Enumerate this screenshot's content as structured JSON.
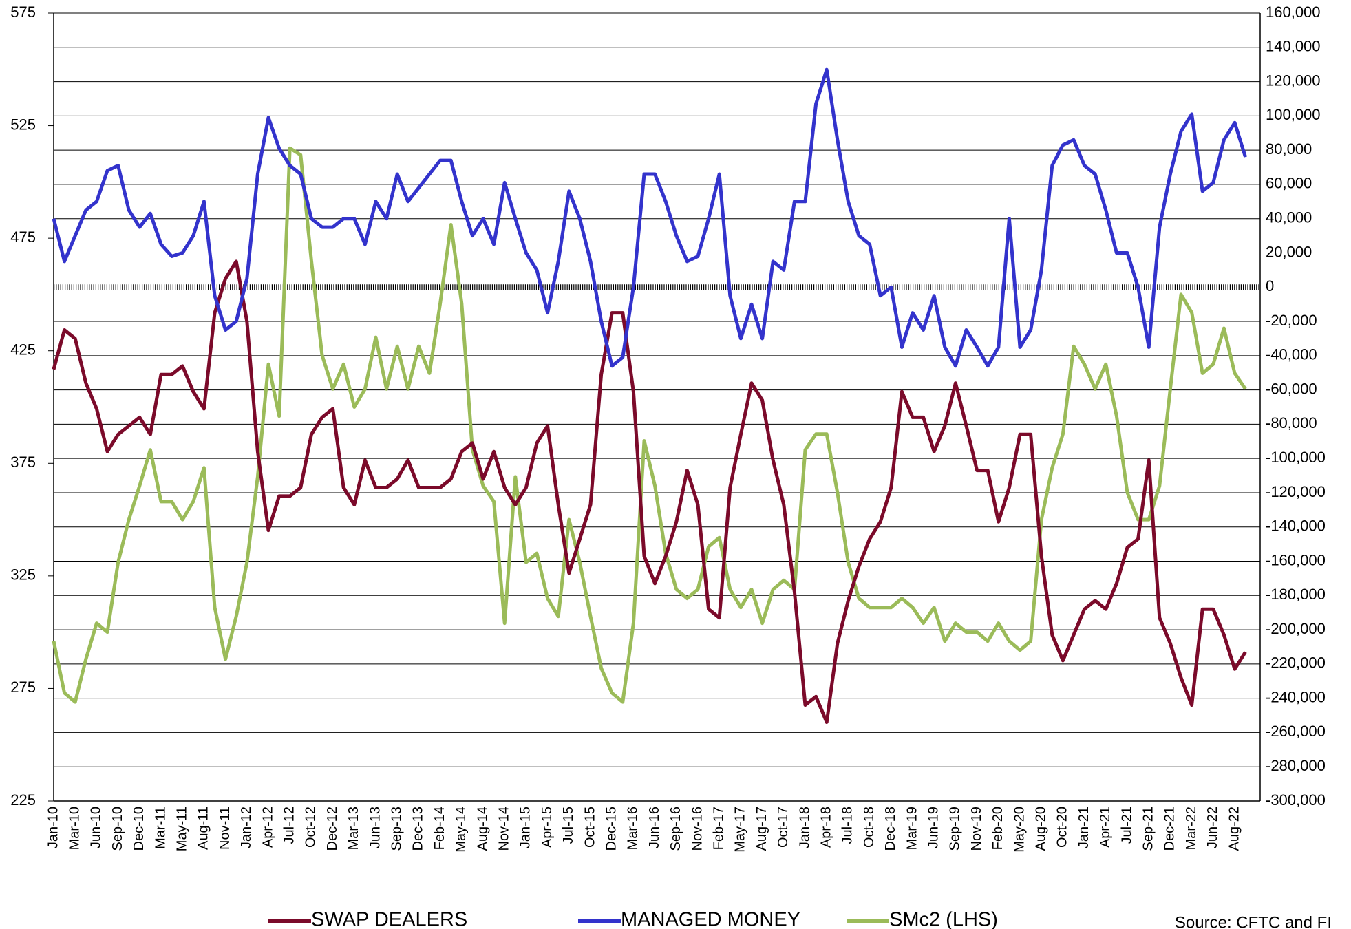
{
  "chart_data": {
    "type": "line",
    "categories": [
      "Jan-10",
      null,
      "Mar-10",
      null,
      "Jun-10",
      null,
      "Sep-10",
      null,
      "Dec-10",
      null,
      "Mar-11",
      null,
      "May-11",
      null,
      "Aug-11",
      null,
      "Nov-11",
      null,
      "Jan-12",
      null,
      "Apr-12",
      null,
      "Jul-12",
      null,
      "Oct-12",
      null,
      "Dec-12",
      null,
      "Mar-13",
      null,
      "Jun-13",
      null,
      "Sep-13",
      null,
      "Dec-13",
      null,
      "Feb-14",
      null,
      "May-14",
      null,
      "Aug-14",
      null,
      "Nov-14",
      null,
      "Jan-15",
      null,
      "Apr-15",
      null,
      "Jul-15",
      null,
      "Oct-15",
      null,
      "Dec-15",
      null,
      "Mar-16",
      null,
      "Jun-16",
      null,
      "Sep-16",
      null,
      "Nov-16",
      null,
      "Feb-17",
      null,
      "May-17",
      null,
      "Aug-17",
      null,
      "Oct-17",
      null,
      "Jan-18",
      null,
      "Apr-18",
      null,
      "Jul-18",
      null,
      "Oct-18",
      null,
      "Dec-18",
      null,
      "Mar-19",
      null,
      "Jun-19",
      null,
      "Sep-19",
      null,
      "Nov-19",
      null,
      "Feb-20",
      null,
      "May-20",
      null,
      "Aug-20",
      null,
      "Oct-20",
      null,
      "Jan-21",
      null,
      "Apr-21",
      null,
      "Jul-21",
      null,
      "Sep-21",
      null,
      "Dec-21",
      null,
      "Mar-22",
      null,
      "Jun-22",
      null,
      "Aug-22",
      null
    ],
    "series": [
      {
        "name": "SWAP DEALERS",
        "color": "#7b0a2a",
        "axis": "y2",
        "values": [
          -48000,
          -25000,
          -30000,
          -56000,
          -71000,
          -96000,
          -86000,
          -81000,
          -76000,
          -86000,
          -51000,
          -51000,
          -46000,
          -61000,
          -71000,
          -15000,
          5000,
          15000,
          -20000,
          -96000,
          -142000,
          -122000,
          -122000,
          -117000,
          -86000,
          -76000,
          -71000,
          -117000,
          -127000,
          -101000,
          -117000,
          -117000,
          -112000,
          -101000,
          -117000,
          -117000,
          -117000,
          -112000,
          -96000,
          -91000,
          -112000,
          -96000,
          -117000,
          -127000,
          -117000,
          -91000,
          -81000,
          -127000,
          -167000,
          -147000,
          -127000,
          -51000,
          -15000,
          -15000,
          -61000,
          -157000,
          -173000,
          -157000,
          -137000,
          -107000,
          -127000,
          -188000,
          -193000,
          -117000,
          -86000,
          -56000,
          -66000,
          -101000,
          -127000,
          -178000,
          -244000,
          -239000,
          -254000,
          -208000,
          -183000,
          -163000,
          -147000,
          -137000,
          -117000,
          -61000,
          -76000,
          -76000,
          -96000,
          -81000,
          -56000,
          -81000,
          -107000,
          -107000,
          -137000,
          -117000,
          -86000,
          -86000,
          -157000,
          -203000,
          -218000,
          -203000,
          -188000,
          -183000,
          -188000,
          -173000,
          -152000,
          -147000,
          -101000,
          -193000,
          -208000,
          -228000,
          -244000,
          -188000,
          -188000,
          -203000,
          -223000,
          -213000
        ]
      },
      {
        "name": "MANAGED MONEY",
        "color": "#3333cc",
        "axis": "y2",
        "values": [
          40000,
          15000,
          30000,
          45000,
          50000,
          68000,
          71000,
          45000,
          35000,
          43000,
          25000,
          18000,
          20000,
          30000,
          50000,
          -5000,
          -25000,
          -20000,
          5000,
          66000,
          99000,
          81000,
          71000,
          66000,
          40000,
          35000,
          35000,
          40000,
          40000,
          25000,
          50000,
          40000,
          66000,
          50000,
          58000,
          66000,
          74000,
          74000,
          50000,
          30000,
          40000,
          25000,
          61000,
          40000,
          20000,
          10000,
          -15000,
          15000,
          56000,
          40000,
          15000,
          -20000,
          -46000,
          -41000,
          0,
          66000,
          66000,
          50000,
          30000,
          15000,
          18000,
          40000,
          66000,
          -5000,
          -30000,
          -10000,
          -30000,
          15000,
          10000,
          50000,
          50000,
          107000,
          127000,
          86000,
          50000,
          30000,
          25000,
          -5000,
          0,
          -35000,
          -15000,
          -25000,
          -5000,
          -35000,
          -46000,
          -25000,
          -35000,
          -46000,
          -35000,
          40000,
          -35000,
          -25000,
          10000,
          71000,
          83000,
          86000,
          71000,
          66000,
          45000,
          20000,
          20000,
          0,
          -35000,
          35000,
          66000,
          91000,
          101000,
          56000,
          61000,
          86000,
          96000,
          76000
        ]
      },
      {
        "name": "SMc2 (LHS)",
        "color": "#9bbb59",
        "values": [
          296,
          273,
          269,
          288,
          304,
          300,
          331,
          350,
          365,
          381,
          358,
          358,
          350,
          358,
          373,
          311,
          288,
          307,
          331,
          369,
          419,
          396,
          515,
          512,
          465,
          423,
          408,
          419,
          400,
          408,
          431,
          408,
          427,
          408,
          427,
          415,
          446,
          481,
          446,
          381,
          365,
          358,
          304,
          369,
          331,
          335,
          315,
          307,
          350,
          331,
          307,
          284,
          273,
          269,
          304,
          385,
          365,
          335,
          319,
          315,
          319,
          338,
          342,
          319,
          311,
          319,
          304,
          319,
          323,
          319,
          381,
          388,
          388,
          362,
          331,
          315,
          311,
          311,
          311,
          315,
          311,
          304,
          311,
          296,
          304,
          300,
          300,
          296,
          304,
          296,
          292,
          296,
          350,
          373,
          388,
          427,
          419,
          408,
          419,
          396,
          362,
          350,
          350,
          365,
          408,
          450,
          442,
          415,
          419,
          435,
          415,
          408
        ]
      }
    ],
    "ylim": [
      225,
      575
    ],
    "yticks": [
      225,
      275,
      325,
      375,
      425,
      475,
      525,
      575
    ],
    "y2lim": [
      -300000,
      160000
    ],
    "y2ticks": [
      {
        "value": -300000,
        "label": "-300,000"
      },
      {
        "value": -280000,
        "label": "-280,000"
      },
      {
        "value": -260000,
        "label": "-260,000"
      },
      {
        "value": -240000,
        "label": "-240,000"
      },
      {
        "value": -220000,
        "label": "-220,000"
      },
      {
        "value": -200000,
        "label": "-200,000"
      },
      {
        "value": -180000,
        "label": "-180,000"
      },
      {
        "value": -160000,
        "label": "-160,000"
      },
      {
        "value": -140000,
        "label": "-140,000"
      },
      {
        "value": -120000,
        "label": "-120,000"
      },
      {
        "value": -100000,
        "label": "-100,000"
      },
      {
        "value": -80000,
        "label": "-80,000"
      },
      {
        "value": -60000,
        "label": "-60,000"
      },
      {
        "value": -40000,
        "label": "-40,000"
      },
      {
        "value": -20000,
        "label": "-20,000"
      },
      0,
      {
        "value": 20000,
        "label": "20,000"
      },
      {
        "value": 40000,
        "label": "40,000"
      },
      {
        "value": 60000,
        "label": "60,000"
      },
      {
        "value": 80000,
        "label": "80,000"
      },
      {
        "value": 100000,
        "label": "100,000"
      },
      {
        "value": 120000,
        "label": "120,000"
      },
      {
        "value": 140000,
        "label": "140,000"
      },
      {
        "value": 160000,
        "label": "160,000"
      }
    ],
    "grid": true,
    "source": "Source: CFTC and FI"
  }
}
